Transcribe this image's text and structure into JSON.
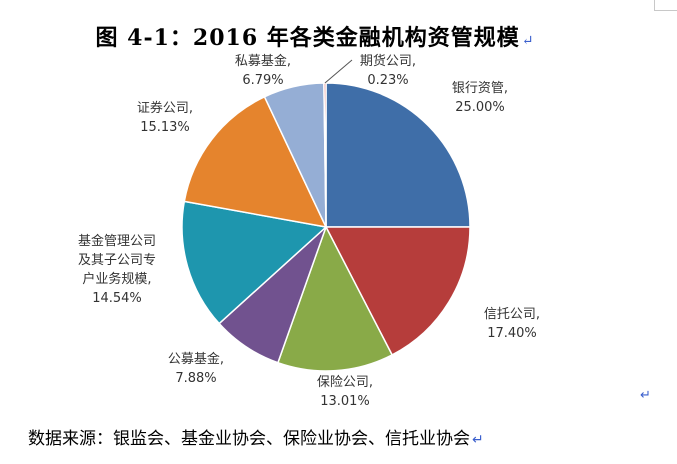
{
  "title": "图 4-1：2016 年各类金融机构资管规模",
  "paragraph_mark": "↵",
  "source": "数据来源：银监会、基金业协会、保险业协会、信托业协会",
  "chart_data": {
    "type": "pie",
    "title": "",
    "start_angle": "12 o'clock",
    "direction": "clockwise",
    "slices": [
      {
        "label": "银行资管,",
        "lines": [
          "银行资管,"
        ],
        "percent_text": "25.00%",
        "value": 25.0,
        "color": "#3f6ea8"
      },
      {
        "label": "信托公司,",
        "lines": [
          "信托公司,"
        ],
        "percent_text": "17.40%",
        "value": 17.4,
        "color": "#b63d3b"
      },
      {
        "label": "保险公司,",
        "lines": [
          "保险公司,"
        ],
        "percent_text": "13.01%",
        "value": 13.01,
        "color": "#89aa48"
      },
      {
        "label": "公募基金,",
        "lines": [
          "公募基金,"
        ],
        "percent_text": "7.88%",
        "value": 7.88,
        "color": "#71528f"
      },
      {
        "label": "基金管理公司及其子公司专户业务规模,",
        "lines": [
          "基金管理公司",
          "及其子公司专",
          "户业务规模,"
        ],
        "percent_text": "14.54%",
        "value": 14.54,
        "color": "#1e96ae"
      },
      {
        "label": "证券公司,",
        "lines": [
          "证券公司,"
        ],
        "percent_text": "15.13%",
        "value": 15.13,
        "color": "#e5842d"
      },
      {
        "label": "私募基金,",
        "lines": [
          "私募基金,"
        ],
        "percent_text": "6.79%",
        "value": 6.79,
        "color": "#95aed5"
      },
      {
        "label": "期货公司,",
        "lines": [
          "期货公司,"
        ],
        "percent_text": "0.23%",
        "value": 0.23,
        "color": "#e46f6a"
      }
    ]
  }
}
